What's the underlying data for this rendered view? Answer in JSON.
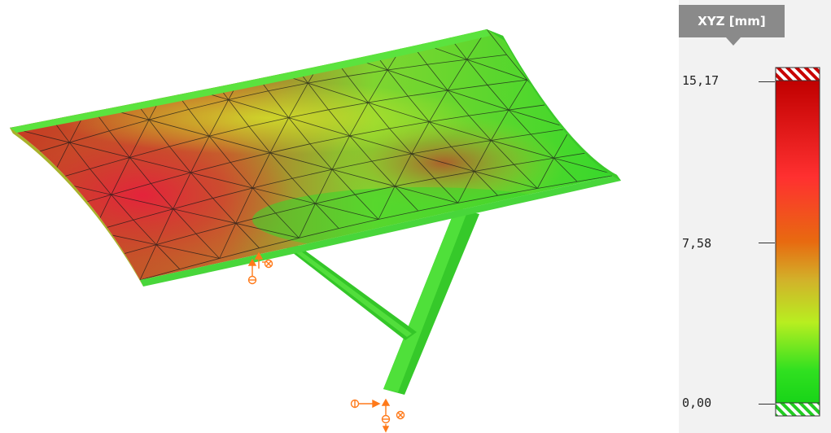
{
  "legend": {
    "title": "XYZ [mm]",
    "unit": "mm",
    "ticks": [
      {
        "label": "15,17",
        "value": 15.17
      },
      {
        "label": "7,58",
        "value": 7.58
      },
      {
        "label": "0,00",
        "value": 0.0
      }
    ],
    "gradient_colors": [
      "#c00000",
      "#ff3030",
      "#e86a10",
      "#d2b22a",
      "#b8ee20",
      "#30e020",
      "#18d418"
    ],
    "over_range_color": "#c80000",
    "under_range_color": "#22cc22"
  },
  "model": {
    "mesh_line_color": "#1a1a1a",
    "support_color": "#ff7a1a",
    "member_color": "#3bd02c"
  }
}
